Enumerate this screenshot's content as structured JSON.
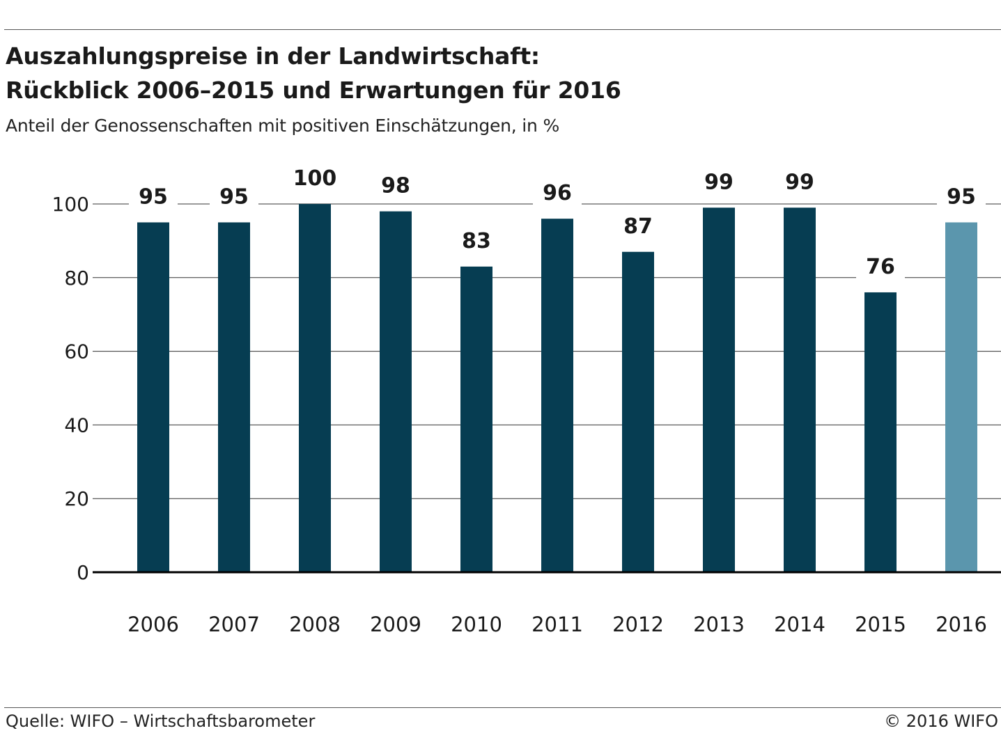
{
  "header": {
    "title_line1": "Auszahlungspreise in der Landwirtschaft:",
    "title_line2": "Rückblick 2006–2015 und Erwartungen für 2016",
    "subtitle": "Anteil der Genossenschaften mit positiven Einschätzungen, in %"
  },
  "footer": {
    "source": "Quelle: WIFO – Wirtschaftsbarometer",
    "copyright": "© 2016 WIFO"
  },
  "chart_data": {
    "type": "bar",
    "title": "Auszahlungspreise in der Landwirtschaft: Rückblick 2006–2015 und Erwartungen für 2016",
    "subtitle": "Anteil der Genossenschaften mit positiven Einschätzungen, in %",
    "xlabel": "",
    "ylabel": "",
    "categories": [
      "2006",
      "2007",
      "2008",
      "2009",
      "2010",
      "2011",
      "2012",
      "2013",
      "2014",
      "2015",
      "2016"
    ],
    "values": [
      95,
      95,
      100,
      98,
      83,
      96,
      87,
      99,
      99,
      76,
      95
    ],
    "data_labels": [
      "95",
      "95",
      "100",
      "98",
      "83",
      "96",
      "87",
      "99",
      "99",
      "76",
      "95"
    ],
    "ylim": [
      0,
      100
    ],
    "yticks": [
      "0",
      "20",
      "40",
      "60",
      "80",
      "100"
    ],
    "grid": true,
    "colors": {
      "bar": "#063d52",
      "bar_highlight": "#5b96ad",
      "gridline": "#333333",
      "axis": "#000000"
    },
    "highlight_index": 10
  }
}
